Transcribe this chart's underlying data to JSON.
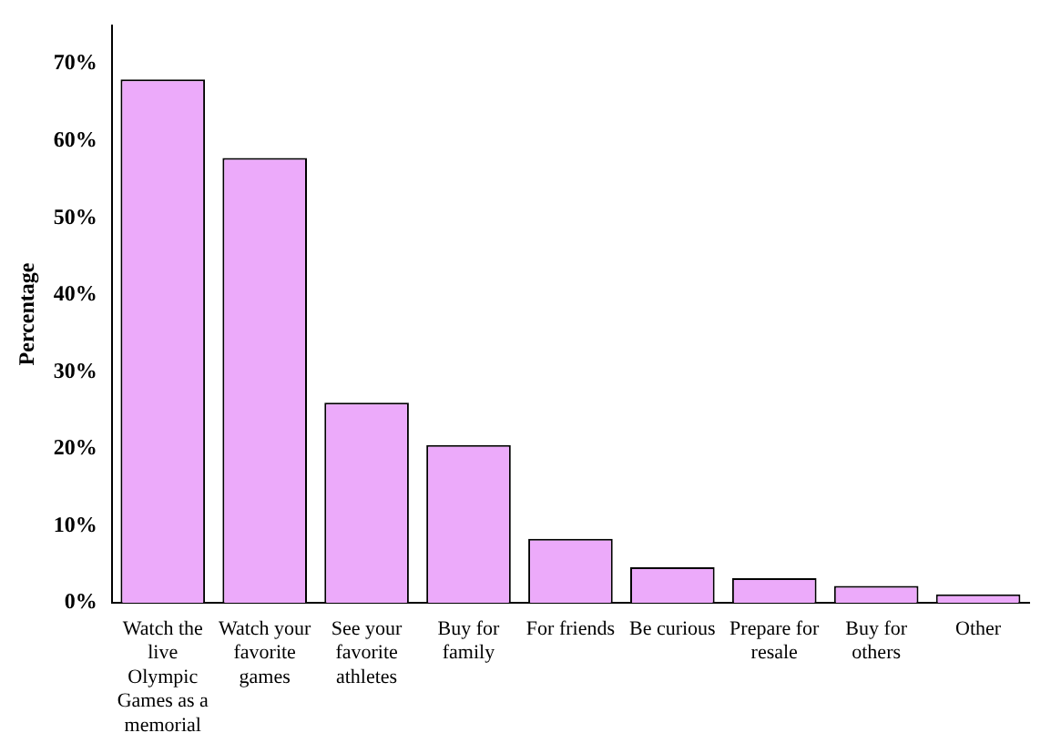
{
  "chart_data": {
    "type": "bar",
    "ylabel": "Percentage",
    "categories": [
      "Watch the live Olympic Games as a memorial",
      "Watch your favorite games",
      "See your favorite athletes",
      "Buy for family",
      "For friends",
      "Be curious",
      "Prepare for resale",
      "Buy for others",
      "Other"
    ],
    "values": [
      68,
      57.8,
      26,
      20.5,
      8.3,
      4.6,
      3.2,
      2.2,
      1.1
    ],
    "color": "#ecaafa",
    "ylim": [
      0,
      75
    ],
    "yticks": [
      {
        "value": 0,
        "label": "0%"
      },
      {
        "value": 10,
        "label": "10%"
      },
      {
        "value": 20,
        "label": "20%"
      },
      {
        "value": 30,
        "label": "30%"
      },
      {
        "value": 40,
        "label": "40%"
      },
      {
        "value": 50,
        "label": "50%"
      },
      {
        "value": 60,
        "label": "60%"
      },
      {
        "value": 70,
        "label": "70%"
      }
    ],
    "grid": false,
    "legend": false
  }
}
